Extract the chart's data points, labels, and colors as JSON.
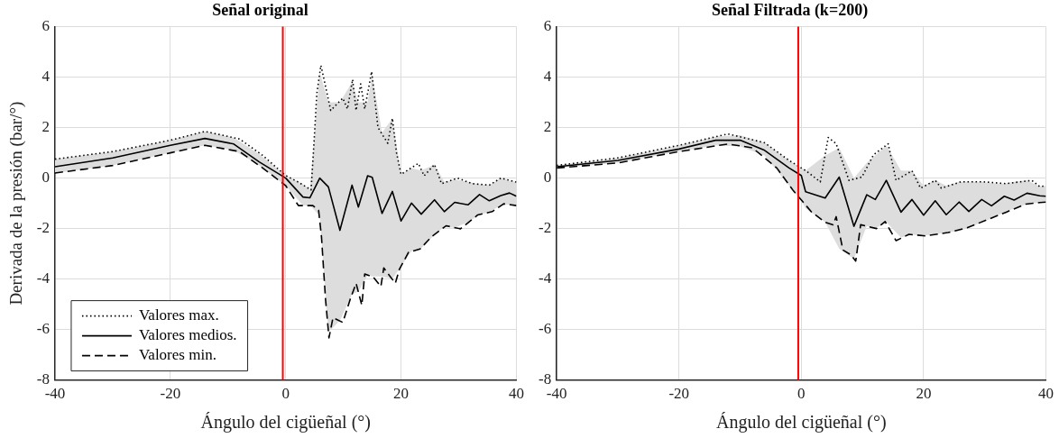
{
  "chart_data": [
    {
      "type": "line",
      "title": "Señal original",
      "xlabel": "Ángulo del cigüeñal (°)",
      "ylabel": "Derivada de la presión (bar/°)",
      "xlim": [
        -40,
        40
      ],
      "xticks": [
        -40,
        -20,
        0,
        20,
        40
      ],
      "ylim": [
        -8,
        6
      ],
      "yticks": [
        -8,
        -6,
        -4,
        -2,
        0,
        2,
        4,
        6
      ],
      "grid": true,
      "legend": "bottom left",
      "marker": "none",
      "ref_lines": [
        {
          "axis": "x",
          "value": -0.5,
          "color": "#ff0000"
        }
      ],
      "series": [
        {
          "name": "Valores max.",
          "color": "#000000",
          "line_style": "dotted",
          "x": [
            -40,
            -30,
            -20,
            -14,
            -8,
            -4,
            0,
            2.2,
            4.4,
            4.9,
            5.4,
            6.1,
            6.7,
            7.8,
            9.9,
            10.7,
            11.6,
            12.2,
            13,
            13.7,
            14.9,
            16,
            17.7,
            18.5,
            19.2,
            20,
            23,
            24,
            25.8,
            27,
            29.8,
            32.3,
            35.3,
            37.3,
            40
          ],
          "values": [
            0.75,
            1.05,
            1.5,
            1.85,
            1.55,
            0.9,
            0.1,
            -0.16,
            -0.47,
            1.38,
            3.36,
            4.47,
            3.85,
            2.68,
            3.17,
            2.74,
            3.91,
            2.68,
            3.73,
            2.74,
            4.22,
            2.0,
            1.38,
            2.37,
            1.01,
            0.15,
            0.58,
            0.09,
            0.54,
            -0.22,
            0,
            -0.22,
            -0.28,
            0,
            -0.16
          ]
        },
        {
          "name": "Valores medios.",
          "color": "#000000",
          "line_style": "solid",
          "x": [
            -40,
            -30,
            -20,
            -14,
            -9,
            -4.6,
            0,
            3,
            4.2,
            5.9,
            7.4,
            9.4,
            11.5,
            12.6,
            14.2,
            15,
            16.7,
            18.5,
            20,
            21.8,
            23.5,
            25.8,
            27.5,
            29.3,
            31.6,
            33.6,
            35.3,
            37.3,
            38.8,
            40
          ],
          "values": [
            0.45,
            0.8,
            1.3,
            1.57,
            1.35,
            0.64,
            0,
            -0.75,
            -0.78,
            0,
            -0.35,
            -2.07,
            -0.28,
            -1.15,
            0.09,
            0.03,
            -1.4,
            -0.53,
            -1.7,
            -0.99,
            -1.43,
            -0.86,
            -1.33,
            -0.96,
            -1.06,
            -0.65,
            -0.9,
            -0.69,
            -0.59,
            -0.72
          ],
          "upper": [
            0.75,
            1.05,
            1.5,
            1.85,
            1.6,
            0.95,
            0.1,
            -0.25,
            -0.45,
            4.2,
            3.0,
            3.0,
            3.8,
            3.0,
            3.0,
            4.1,
            1.8,
            2.37,
            0.15,
            0.4,
            0.3,
            0.54,
            -0.15,
            -0.05,
            -0.15,
            -0.25,
            -0.28,
            0,
            -0.1,
            -0.16
          ],
          "lower": [
            0.2,
            0.5,
            1.0,
            1.3,
            1.1,
            0.5,
            -0.3,
            -1.09,
            -1.09,
            -1.5,
            -6.1,
            -5.65,
            -4.6,
            -4.5,
            -3.85,
            -3.9,
            -3.9,
            -4.0,
            -3.5,
            -2.9,
            -2.78,
            -2.25,
            -1.93,
            -1.97,
            -1.75,
            -1.45,
            -1.35,
            -1.08,
            -1.05,
            -1.09
          ]
        },
        {
          "name": "Valores min.",
          "color": "#000000",
          "line_style": "dashed",
          "x": [
            -40,
            -30,
            -20,
            -14,
            -8,
            -4,
            0,
            2.2,
            4.7,
            5.7,
            6.2,
            6.9,
            7.5,
            8.2,
            9.9,
            11.2,
            12.2,
            13.2,
            13.7,
            15.2,
            16.5,
            17,
            19,
            19.7,
            21.3,
            23.3,
            25.3,
            27.8,
            30.3,
            33.3,
            35.8,
            37.8,
            40
          ],
          "values": [
            0.2,
            0.5,
            1.0,
            1.3,
            1.05,
            0.4,
            -0.3,
            -1.09,
            -1.09,
            -1.27,
            -2.32,
            -4.79,
            -6.33,
            -5.53,
            -5.72,
            -4.79,
            -4.17,
            -5.04,
            -3.8,
            -3.93,
            -4.3,
            -3.56,
            -4.17,
            -3.62,
            -2.94,
            -2.81,
            -2.32,
            -1.89,
            -2.01,
            -1.46,
            -1.33,
            -1.02,
            -1.09
          ]
        }
      ]
    },
    {
      "type": "line",
      "title": "Señal Filtrada (k=200)",
      "xlabel": "Ángulo del cigüeñal (°)",
      "xlim": [
        -40,
        40
      ],
      "xticks": [
        -40,
        -20,
        0,
        20,
        40
      ],
      "ylim": [
        -8,
        6
      ],
      "yticks": [
        -8,
        -6,
        -4,
        -2,
        0,
        2,
        4,
        6
      ],
      "grid": true,
      "marker": "none",
      "ref_lines": [
        {
          "axis": "x",
          "value": -0.5,
          "color": "#ff0000"
        }
      ],
      "series": [
        {
          "color": "#000000",
          "line_style": "dotted",
          "x": [
            -40,
            -30,
            -20,
            -12,
            -6,
            -2,
            0,
            0.7,
            3.1,
            4.4,
            5.7,
            7.8,
            9.9,
            11.8,
            14.2,
            15.5,
            18.1,
            19.5,
            21.9,
            22.9,
            26.1,
            29.8,
            33.5,
            37.7,
            39,
            40
          ],
          "values": [
            0.5,
            0.8,
            1.3,
            1.75,
            1.4,
            0.7,
            0.4,
            0.3,
            -0.15,
            1.61,
            1.36,
            -0.09,
            0.04,
            0.92,
            1.36,
            -0.09,
            0.29,
            -0.4,
            -0.09,
            -0.4,
            -0.15,
            -0.15,
            -0.22,
            -0.09,
            -0.34,
            -0.3
          ]
        },
        {
          "color": "#000000",
          "line_style": "solid",
          "x": [
            -40,
            -30,
            -20,
            -14,
            -10,
            -6,
            -2,
            0,
            0.7,
            3.9,
            6.2,
            8.6,
            10.7,
            12.1,
            13.9,
            16.3,
            18.1,
            20,
            21.9,
            23.7,
            25.8,
            27.4,
            29.5,
            31.1,
            33.2,
            34.8,
            36.9,
            39,
            40
          ],
          "values": [
            0.45,
            0.7,
            1.15,
            1.5,
            1.5,
            1.1,
            0.4,
            0.1,
            -0.54,
            -0.79,
            0.04,
            -1.91,
            -0.66,
            -0.85,
            -0.09,
            -1.35,
            -0.85,
            -1.47,
            -0.9,
            -1.45,
            -0.95,
            -1.32,
            -0.85,
            -1.1,
            -0.72,
            -0.87,
            -0.6,
            -0.7,
            -0.72
          ],
          "upper": [
            0.5,
            0.8,
            1.3,
            1.65,
            1.7,
            1.4,
            0.7,
            0.4,
            0.3,
            0.9,
            1.2,
            0.0,
            0.6,
            0.9,
            1.3,
            0.3,
            0.29,
            -0.3,
            -0.09,
            -0.3,
            -0.15,
            -0.15,
            -0.15,
            -0.2,
            -0.22,
            -0.15,
            -0.09,
            -0.34,
            -0.3
          ],
          "lower": [
            0.4,
            0.6,
            1.05,
            1.3,
            1.25,
            0.9,
            -0.3,
            -0.9,
            -1.2,
            -1.75,
            -2.8,
            -3.2,
            -1.9,
            -2.0,
            -1.75,
            -2.35,
            -2.25,
            -2.28,
            -2.22,
            -2.16,
            -2.1,
            -1.97,
            -1.75,
            -1.6,
            -1.35,
            -1.2,
            -1.03,
            -0.97,
            -0.95
          ]
        },
        {
          "color": "#000000",
          "line_style": "dashed",
          "x": [
            -40,
            -30,
            -20,
            -12,
            -8,
            -4,
            -1.4,
            1.7,
            3.9,
            5.2,
            5.7,
            6.8,
            8.1,
            8.9,
            9.7,
            12.3,
            13.7,
            15.5,
            17.6,
            20.3,
            24,
            27.1,
            30.3,
            33.5,
            36.7,
            39,
            40
          ],
          "values": [
            0.4,
            0.6,
            1.05,
            1.35,
            1.2,
            0.4,
            -0.47,
            -1.35,
            -1.75,
            -1.85,
            -1.53,
            -2.85,
            -3.04,
            -3.29,
            -1.85,
            -2.0,
            -1.72,
            -2.48,
            -2.23,
            -2.29,
            -2.16,
            -1.97,
            -1.66,
            -1.35,
            -1.03,
            -0.97,
            -0.95
          ]
        }
      ]
    }
  ]
}
